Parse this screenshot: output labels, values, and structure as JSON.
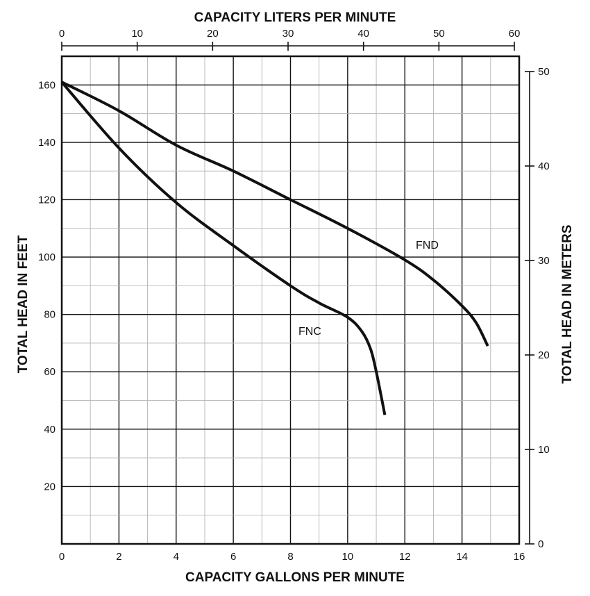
{
  "chart_data": {
    "type": "line",
    "x_bottom": {
      "label": "CAPACITY GALLONS PER MINUTE",
      "range": [
        0,
        16
      ],
      "ticks": [
        "0",
        "2",
        "4",
        "6",
        "8",
        "10",
        "12",
        "14",
        "16"
      ]
    },
    "x_top": {
      "label": "CAPACITY LITERS PER MINUTE",
      "range": [
        0,
        60
      ],
      "ticks": [
        "0",
        "10",
        "20",
        "30",
        "40",
        "50",
        "60"
      ]
    },
    "y_left": {
      "label": "TOTAL HEAD IN FEET",
      "range": [
        0,
        170
      ],
      "ticks": [
        "20",
        "40",
        "60",
        "80",
        "100",
        "120",
        "140",
        "160"
      ]
    },
    "y_right": {
      "label": "TOTAL HEAD IN METERS",
      "range": [
        0,
        50
      ],
      "ticks": [
        "0",
        "10",
        "20",
        "30",
        "40",
        "50"
      ]
    },
    "grid": true,
    "series": [
      {
        "name": "FND",
        "x": [
          0,
          2,
          4,
          6,
          8,
          10,
          12,
          13,
          14,
          14.5,
          14.9
        ],
        "y": [
          161,
          151,
          139,
          130,
          120,
          110,
          99,
          92,
          83,
          77,
          69
        ]
      },
      {
        "name": "FNC",
        "x": [
          0,
          2,
          4,
          6,
          8,
          9,
          10,
          10.5,
          10.8,
          11,
          11.3
        ],
        "y": [
          161,
          138,
          119,
          104,
          90,
          84,
          79,
          74,
          68,
          60,
          45
        ]
      }
    ]
  }
}
